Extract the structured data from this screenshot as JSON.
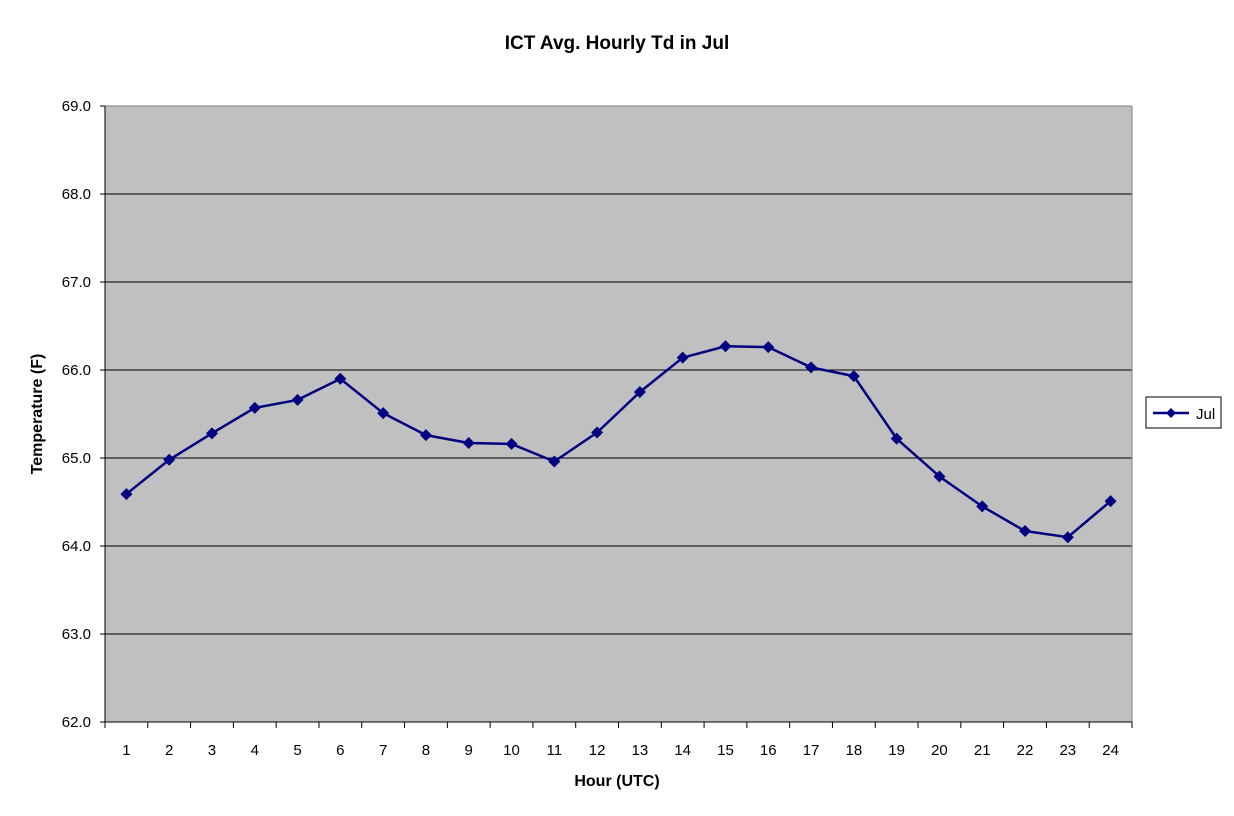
{
  "chart_data": {
    "type": "line",
    "title": "ICT Avg. Hourly Td in Jul",
    "xlabel": "Hour (UTC)",
    "ylabel": "Temperature (F)",
    "categories": [
      "1",
      "2",
      "3",
      "4",
      "5",
      "6",
      "7",
      "8",
      "9",
      "10",
      "11",
      "12",
      "13",
      "14",
      "15",
      "16",
      "17",
      "18",
      "19",
      "20",
      "21",
      "22",
      "23",
      "24"
    ],
    "series": [
      {
        "name": "Jul",
        "values": [
          64.59,
          64.98,
          65.28,
          65.57,
          65.66,
          65.9,
          65.51,
          65.26,
          65.17,
          65.16,
          64.96,
          65.29,
          65.75,
          66.14,
          66.27,
          66.26,
          66.03,
          65.93,
          65.22,
          64.79,
          64.45,
          64.17,
          64.1,
          64.51
        ]
      }
    ],
    "ylim": [
      62.0,
      69.0
    ],
    "yticks": [
      "62.0",
      "63.0",
      "64.0",
      "65.0",
      "66.0",
      "67.0",
      "68.0",
      "69.0"
    ],
    "grid": true,
    "legend_position": "right",
    "colors": {
      "plot_background": "#c0c0c0",
      "series_line": "#000080",
      "gridline": "#000000",
      "page_background": "#ffffff"
    }
  }
}
